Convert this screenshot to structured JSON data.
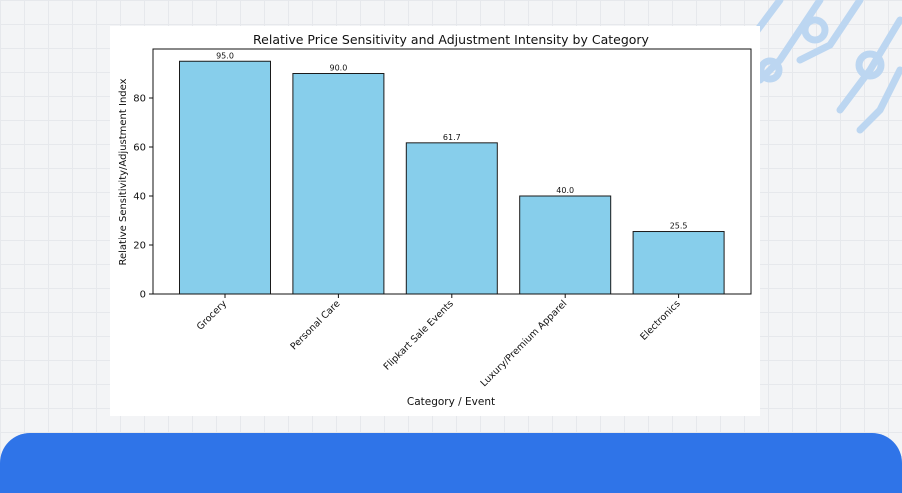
{
  "colors": {
    "bar_fill": "#87ceeb",
    "bar_stroke": "#1a1a1a",
    "banner": "#2f74e8",
    "decoration": "#bcd6f1",
    "background": "#f3f4f6"
  },
  "decoration_icon": "circuit-lines-icon",
  "chart_data": {
    "type": "bar",
    "title": "Relative Price Sensitivity and Adjustment Intensity by Category",
    "xlabel": "Category / Event",
    "ylabel": "Relative Sensitivity/Adjustment Index",
    "categories": [
      "Grocery",
      "Personal Care",
      "Flipkart Sale Events",
      "Luxury/Premium Apparel",
      "Electronics"
    ],
    "values": [
      95.0,
      90.0,
      61.7,
      40.0,
      25.5
    ],
    "value_labels": [
      "95.0",
      "90.0",
      "61.7",
      "40.0",
      "25.5"
    ],
    "yticks": [
      "0",
      "20",
      "40",
      "60",
      "80"
    ],
    "ylim": [
      0,
      100
    ],
    "grid": false,
    "legend": false
  }
}
